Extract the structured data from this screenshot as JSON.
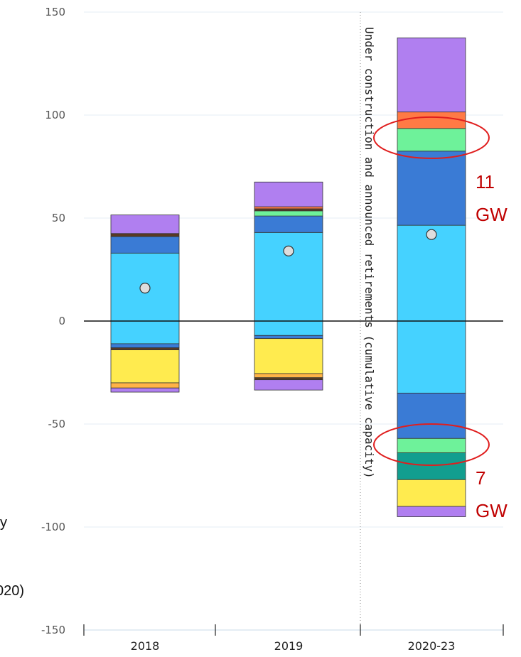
{
  "chart_data": {
    "type": "bar",
    "stacked": true,
    "categories": [
      "2018",
      "2019",
      "2020-23"
    ],
    "y_ticks": [
      "150",
      "100",
      "50",
      "0",
      "-50",
      "-100",
      "-150"
    ],
    "ylim": [
      -150,
      150
    ],
    "grid": true,
    "title": "",
    "xlabel": "",
    "ylabel": "",
    "divider_label": "Under construction and announced retirements (cumulative capacity)",
    "colors": {
      "purple": "#b07ff0",
      "orange_red": "#ff7a45",
      "green": "#6ef29a",
      "blue": "#3a7bd5",
      "light_blue": "#45d2ff",
      "dark_brown": "#5a3a22",
      "yellow": "#ffeb4f",
      "orange": "#ffb347",
      "teal": "#129e8f",
      "net_marker": "#dddddd"
    },
    "stacks": [
      {
        "category": "2018",
        "positive": [
          {
            "color": "light_blue",
            "value": 33
          },
          {
            "color": "blue",
            "value": 8
          },
          {
            "color": "dark_brown",
            "value": 1.5
          },
          {
            "color": "purple",
            "value": 9
          }
        ],
        "negative": [
          {
            "color": "light_blue",
            "value": -11
          },
          {
            "color": "blue",
            "value": -2
          },
          {
            "color": "dark_brown",
            "value": -1
          },
          {
            "color": "yellow",
            "value": -16
          },
          {
            "color": "orange",
            "value": -2.5
          },
          {
            "color": "purple",
            "value": -2
          }
        ],
        "net": 16
      },
      {
        "category": "2019",
        "positive": [
          {
            "color": "light_blue",
            "value": 43
          },
          {
            "color": "blue",
            "value": 8
          },
          {
            "color": "green",
            "value": 2.5
          },
          {
            "color": "dark_brown",
            "value": 1
          },
          {
            "color": "orange_red",
            "value": 1
          },
          {
            "color": "purple",
            "value": 12
          }
        ],
        "negative": [
          {
            "color": "light_blue",
            "value": -7
          },
          {
            "color": "blue",
            "value": -1.5
          },
          {
            "color": "yellow",
            "value": -17
          },
          {
            "color": "orange",
            "value": -2
          },
          {
            "color": "dark_brown",
            "value": -1
          },
          {
            "color": "purple",
            "value": -5
          }
        ],
        "net": 34
      },
      {
        "category": "2020-23",
        "positive": [
          {
            "color": "light_blue",
            "value": 46.5
          },
          {
            "color": "blue",
            "value": 36
          },
          {
            "color": "green",
            "value": 11
          },
          {
            "color": "orange_red",
            "value": 8
          },
          {
            "color": "purple",
            "value": 36
          }
        ],
        "negative": [
          {
            "color": "light_blue",
            "value": -35
          },
          {
            "color": "blue",
            "value": -22
          },
          {
            "color": "green",
            "value": -7
          },
          {
            "color": "teal",
            "value": -13
          },
          {
            "color": "yellow",
            "value": -13
          },
          {
            "color": "purple",
            "value": -5
          }
        ],
        "net": 42
      }
    ],
    "annotations": [
      {
        "value": "11",
        "unit": "GW",
        "category": "2020-23",
        "y": 89
      },
      {
        "value": "7",
        "unit": "GW",
        "category": "2020-23",
        "y": -60
      }
    ]
  },
  "cropped_text": {
    "left_y": "y",
    "bottom": "020)"
  }
}
